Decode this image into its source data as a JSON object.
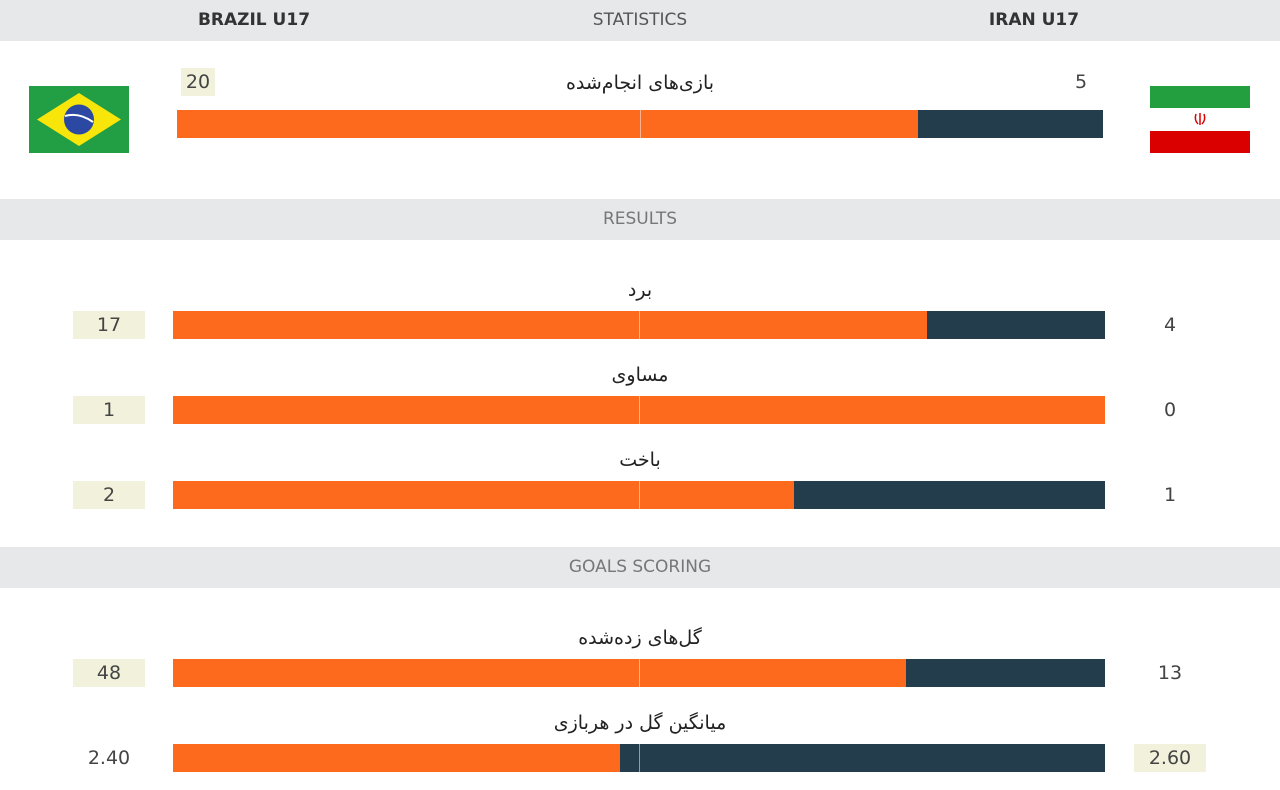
{
  "header": {
    "home": "BRAZIL U17",
    "title": "STATISTICS",
    "away": "IRAN U17"
  },
  "matches": {
    "label": "بازی‌های انجام‌شده",
    "home": 20,
    "away": 5
  },
  "sections": [
    {
      "title": "RESULTS",
      "rows": [
        {
          "label": "برد",
          "home": 17,
          "away": 4
        },
        {
          "label": "مساوی",
          "home": 1,
          "away": 0
        },
        {
          "label": "باخت",
          "home": 2,
          "away": 1
        }
      ]
    },
    {
      "title": "GOALS SCORING",
      "rows": [
        {
          "label": "گل‌های زده‌شده",
          "home": 48,
          "away": 13
        },
        {
          "label": "میانگین گل در هربازی",
          "home": 2.4,
          "away": 2.6,
          "home_label": "2.40",
          "away_label": "2.60"
        }
      ]
    }
  ]
}
